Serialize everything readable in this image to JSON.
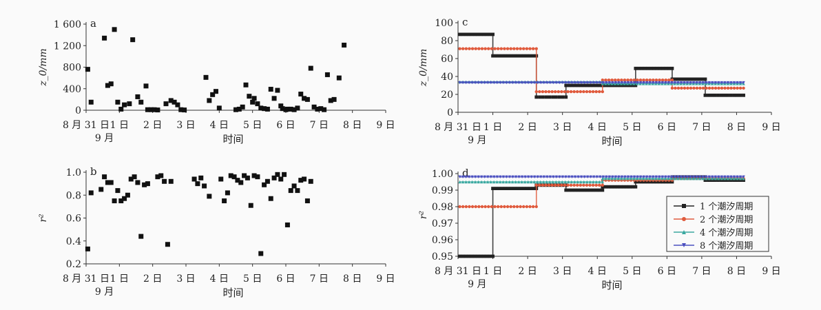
{
  "chart_data": [
    {
      "panel": "a",
      "type": "scatter",
      "ylabel": "z_0/mm",
      "x_ticks": [
        "8 月 31 日",
        "1 日",
        "2 日",
        "3 日",
        "4 日",
        "5 日",
        "6 日",
        "7 日",
        "8 日",
        "9 日"
      ],
      "x_sublabel": "9 月",
      "xlabel": "时间",
      "xlim": [
        0,
        9
      ],
      "ylim": [
        0,
        1600
      ],
      "y_ticks": [
        0,
        400,
        800,
        1200,
        1600
      ],
      "y_tick_labels": [
        "0",
        "400",
        "800",
        "1 200",
        "1 600"
      ],
      "points": [
        [
          0.05,
          760
        ],
        [
          0.15,
          150
        ],
        [
          0.55,
          1340
        ],
        [
          0.65,
          460
        ],
        [
          0.75,
          490
        ],
        [
          0.85,
          1500
        ],
        [
          0.95,
          150
        ],
        [
          1.05,
          20
        ],
        [
          1.15,
          100
        ],
        [
          1.3,
          120
        ],
        [
          1.4,
          1310
        ],
        [
          1.55,
          250
        ],
        [
          1.65,
          150
        ],
        [
          1.8,
          450
        ],
        [
          1.85,
          10
        ],
        [
          1.95,
          10
        ],
        [
          2.05,
          10
        ],
        [
          2.15,
          5
        ],
        [
          2.4,
          120
        ],
        [
          2.55,
          180
        ],
        [
          2.65,
          150
        ],
        [
          2.75,
          100
        ],
        [
          2.85,
          10
        ],
        [
          2.95,
          5
        ],
        [
          3.6,
          610
        ],
        [
          3.7,
          180
        ],
        [
          3.8,
          290
        ],
        [
          3.9,
          350
        ],
        [
          4.0,
          40
        ],
        [
          4.5,
          10
        ],
        [
          4.6,
          20
        ],
        [
          4.7,
          60
        ],
        [
          4.8,
          470
        ],
        [
          4.9,
          260
        ],
        [
          5.0,
          150
        ],
        [
          5.05,
          220
        ],
        [
          5.15,
          120
        ],
        [
          5.25,
          40
        ],
        [
          5.35,
          30
        ],
        [
          5.45,
          20
        ],
        [
          5.55,
          390
        ],
        [
          5.65,
          220
        ],
        [
          5.75,
          370
        ],
        [
          5.85,
          80
        ],
        [
          5.9,
          30
        ],
        [
          6.0,
          10
        ],
        [
          6.05,
          20
        ],
        [
          6.15,
          20
        ],
        [
          6.25,
          10
        ],
        [
          6.35,
          40
        ],
        [
          6.45,
          300
        ],
        [
          6.55,
          220
        ],
        [
          6.65,
          200
        ],
        [
          6.75,
          780
        ],
        [
          6.85,
          60
        ],
        [
          6.95,
          20
        ],
        [
          7.05,
          30
        ],
        [
          7.15,
          10
        ],
        [
          7.25,
          660
        ],
        [
          7.35,
          180
        ],
        [
          7.45,
          200
        ],
        [
          7.6,
          600
        ],
        [
          7.75,
          1210
        ]
      ]
    },
    {
      "panel": "b",
      "type": "scatter",
      "ylabel": "r²",
      "x_ticks": [
        "8 月 31 日",
        "1 日",
        "2 日",
        "3 日",
        "4 日",
        "5 日",
        "6 日",
        "7 日",
        "8 日",
        "9 日"
      ],
      "x_sublabel": "9 月",
      "xlabel": "时间",
      "xlim": [
        0,
        9
      ],
      "ylim": [
        0.2,
        1.0
      ],
      "y_ticks": [
        0.2,
        0.4,
        0.6,
        0.8,
        1.0
      ],
      "y_tick_labels": [
        "0.2",
        "0.4",
        "0.6",
        "0.8",
        "1.0"
      ],
      "points": [
        [
          0.05,
          0.33
        ],
        [
          0.15,
          0.82
        ],
        [
          0.45,
          0.85
        ],
        [
          0.55,
          0.96
        ],
        [
          0.65,
          0.91
        ],
        [
          0.75,
          0.91
        ],
        [
          0.85,
          0.75
        ],
        [
          0.95,
          0.84
        ],
        [
          1.05,
          0.75
        ],
        [
          1.15,
          0.77
        ],
        [
          1.25,
          0.8
        ],
        [
          1.35,
          0.94
        ],
        [
          1.45,
          0.96
        ],
        [
          1.55,
          0.91
        ],
        [
          1.65,
          0.44
        ],
        [
          1.75,
          0.89
        ],
        [
          1.85,
          0.9
        ],
        [
          2.15,
          0.96
        ],
        [
          2.25,
          0.97
        ],
        [
          2.35,
          0.92
        ],
        [
          2.45,
          0.37
        ],
        [
          2.55,
          0.92
        ],
        [
          3.25,
          0.94
        ],
        [
          3.35,
          0.9
        ],
        [
          3.45,
          0.95
        ],
        [
          3.55,
          0.88
        ],
        [
          3.7,
          0.79
        ],
        [
          4.05,
          0.94
        ],
        [
          4.15,
          0.75
        ],
        [
          4.25,
          0.82
        ],
        [
          4.35,
          0.97
        ],
        [
          4.45,
          0.96
        ],
        [
          4.55,
          0.93
        ],
        [
          4.65,
          0.91
        ],
        [
          4.75,
          0.97
        ],
        [
          4.85,
          0.95
        ],
        [
          4.95,
          0.71
        ],
        [
          5.05,
          0.97
        ],
        [
          5.15,
          0.96
        ],
        [
          5.25,
          0.29
        ],
        [
          5.35,
          0.89
        ],
        [
          5.45,
          0.92
        ],
        [
          5.55,
          0.77
        ],
        [
          5.65,
          0.95
        ],
        [
          5.75,
          0.98
        ],
        [
          5.85,
          0.94
        ],
        [
          5.95,
          0.98
        ],
        [
          6.05,
          0.54
        ],
        [
          6.15,
          0.84
        ],
        [
          6.25,
          0.88
        ],
        [
          6.35,
          0.84
        ],
        [
          6.45,
          0.93
        ],
        [
          6.55,
          0.94
        ],
        [
          6.65,
          0.75
        ],
        [
          6.75,
          0.92
        ]
      ]
    },
    {
      "panel": "c",
      "type": "line",
      "ylabel": "z_0/mm",
      "x_ticks": [
        "8 月 31 日",
        "1 日",
        "2 日",
        "3 日",
        "4 日",
        "5 日",
        "6 日",
        "7 日",
        "8 日",
        "9 日"
      ],
      "x_sublabel": "9 月",
      "xlabel": "时间",
      "xlim": [
        0,
        9
      ],
      "ylim": [
        0,
        100
      ],
      "y_ticks": [
        0,
        20,
        40,
        60,
        80,
        100
      ],
      "y_tick_labels": [
        "0",
        "20",
        "40",
        "60",
        "80",
        "100"
      ],
      "series": [
        {
          "label": "1 个潮汐周期",
          "color": "#222222",
          "marker": "square",
          "steps": [
            [
              0.05,
              1.0,
              87
            ],
            [
              1.0,
              2.25,
              63
            ],
            [
              2.25,
              3.1,
              17
            ],
            [
              3.1,
              4.15,
              30
            ],
            [
              4.15,
              5.1,
              30
            ],
            [
              5.1,
              6.15,
              49
            ],
            [
              6.15,
              7.1,
              37
            ],
            [
              7.1,
              8.2,
              19
            ]
          ]
        },
        {
          "label": "2 个潮汐周期",
          "color": "#e05a3c",
          "marker": "circle",
          "steps": [
            [
              0.05,
              2.25,
              71
            ],
            [
              2.25,
              4.15,
              23
            ],
            [
              4.15,
              6.15,
              36
            ],
            [
              6.15,
              8.2,
              27
            ]
          ]
        },
        {
          "label": "4 个潮汐周期",
          "color": "#3aa8a0",
          "marker": "triangle-up",
          "steps": [
            [
              0.05,
              4.15,
              34
            ],
            [
              4.15,
              8.2,
              32
            ]
          ]
        },
        {
          "label": "8 个潮汐周期",
          "color": "#4b4fc0",
          "marker": "triangle-down",
          "steps": [
            [
              0.05,
              8.2,
              33
            ]
          ]
        }
      ]
    },
    {
      "panel": "d",
      "type": "line",
      "ylabel": "r²",
      "x_ticks": [
        "8 月 31 日",
        "1 日",
        "2 日",
        "3 日",
        "4 日",
        "5 日",
        "6 日",
        "7 日",
        "8 日",
        "9 日"
      ],
      "x_sublabel": "9 月",
      "xlabel": "时间",
      "xlim": [
        0,
        9
      ],
      "ylim": [
        0.95,
        1.0
      ],
      "y_ticks": [
        0.95,
        0.96,
        0.97,
        0.98,
        0.99,
        1.0
      ],
      "y_tick_labels": [
        "0.95",
        "0.96",
        "0.97",
        "0.98",
        "0.99",
        "1.00"
      ],
      "legend": "right",
      "series": [
        {
          "label": "1 个潮汐周期",
          "color": "#222222",
          "marker": "square",
          "steps": [
            [
              0.05,
              1.0,
              0.95
            ],
            [
              1.0,
              2.25,
              0.991
            ],
            [
              2.25,
              3.1,
              0.993
            ],
            [
              3.1,
              4.15,
              0.99
            ],
            [
              4.15,
              5.1,
              0.992
            ],
            [
              5.1,
              6.15,
              0.995
            ],
            [
              6.15,
              7.1,
              0.998
            ],
            [
              7.1,
              8.2,
              0.996
            ]
          ]
        },
        {
          "label": "2 个潮汐周期",
          "color": "#e05a3c",
          "marker": "circle",
          "steps": [
            [
              0.05,
              2.25,
              0.98
            ],
            [
              2.25,
              4.15,
              0.993
            ],
            [
              4.15,
              6.15,
              0.996
            ],
            [
              6.15,
              8.2,
              0.997
            ]
          ]
        },
        {
          "label": "4 个潮汐周期",
          "color": "#3aa8a0",
          "marker": "triangle-up",
          "steps": [
            [
              0.05,
              4.15,
              0.995
            ],
            [
              4.15,
              8.2,
              0.997
            ]
          ]
        },
        {
          "label": "8 个潮汐周期",
          "color": "#4b4fc0",
          "marker": "triangle-down",
          "steps": [
            [
              0.05,
              8.2,
              0.998
            ]
          ]
        }
      ]
    }
  ]
}
